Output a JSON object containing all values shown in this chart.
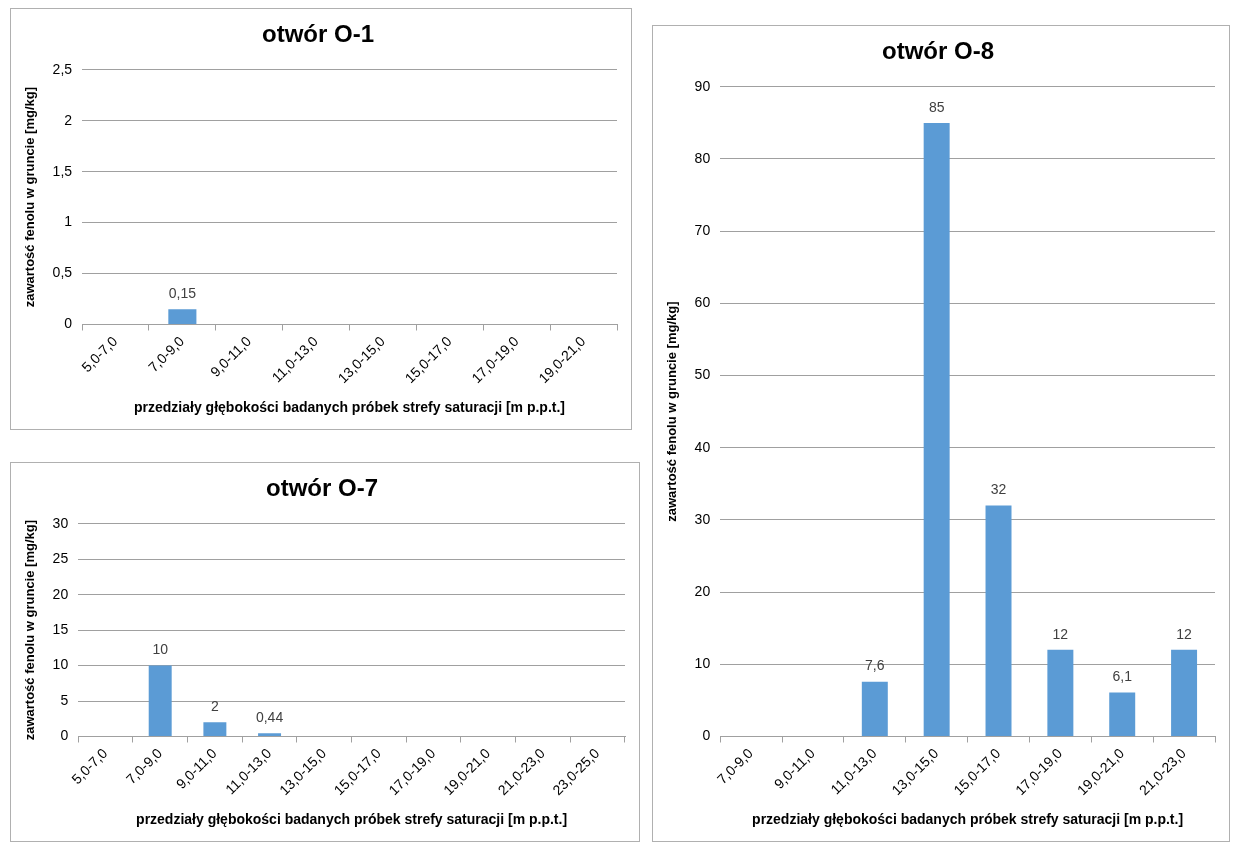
{
  "chart_data": [
    {
      "type": "bar",
      "title": "otwór O-1",
      "xlabel": "przedziały głębokości badanych próbek strefy saturacji [m p.p.t.]",
      "ylabel": "zawartość fenolu w gruncie [mg/kg]",
      "categories": [
        "5,0-7,0",
        "7,0-9,0",
        "9,0-11,0",
        "11,0-13,0",
        "13,0-15,0",
        "15,0-17,0",
        "17,0-19,0",
        "19,0-21,0"
      ],
      "values": [
        null,
        0.15,
        null,
        null,
        null,
        null,
        null,
        null
      ],
      "color": "#5b9bd5",
      "ylim": [
        0,
        2.5
      ],
      "yticks": [
        {
          "value": 0,
          "label": "0"
        },
        {
          "value": 0.5,
          "label": "0,5"
        },
        {
          "value": 1,
          "label": "1"
        },
        {
          "value": 1.5,
          "label": "1,5"
        },
        {
          "value": 2,
          "label": "2"
        },
        {
          "value": 2.5,
          "label": "2,5"
        }
      ],
      "value_labels": [
        null,
        "0,15",
        null,
        null,
        null,
        null,
        null,
        null
      ],
      "grid": "y",
      "legend": false
    },
    {
      "type": "bar",
      "title": "otwór O-8",
      "xlabel": "przedziały głębokości badanych próbek strefy saturacji [m p.p.t.]",
      "ylabel": "zawartość fenolu w gruncie [mg/kg]",
      "categories": [
        "7,0-9,0",
        "9,0-11,0",
        "11,0-13,0",
        "13,0-15,0",
        "15,0-17,0",
        "17,0-19,0",
        "19,0-21,0",
        "21,0-23,0"
      ],
      "values": [
        null,
        null,
        7.6,
        85,
        32,
        12,
        6.1,
        12
      ],
      "color": "#5b9bd5",
      "ylim": [
        0,
        90
      ],
      "yticks": [
        0,
        10,
        20,
        30,
        40,
        50,
        60,
        70,
        80,
        90
      ],
      "value_labels": [
        null,
        null,
        "7,6",
        "85",
        "32",
        "12",
        "6,1",
        "12"
      ],
      "grid": "y",
      "legend": false
    },
    {
      "type": "bar",
      "title": "otwór O-7",
      "xlabel": "przedziały głębokości badanych próbek strefy saturacji [m p.p.t.]",
      "ylabel": "zawartość fenolu w gruncie [mg/kg]",
      "categories": [
        "5,0-7,0",
        "7,0-9,0",
        "9,0-11,0",
        "11,0-13,0",
        "13,0-15,0",
        "15,0-17,0",
        "17,0-19,0",
        "19,0-21,0",
        "21,0-23,0",
        "23,0-25,0"
      ],
      "values": [
        null,
        10,
        2,
        0.44,
        null,
        null,
        null,
        null,
        null,
        null
      ],
      "color": "#5b9bd5",
      "ylim": [
        0,
        30
      ],
      "yticks": [
        0,
        5,
        10,
        15,
        20,
        25,
        30
      ],
      "value_labels": [
        null,
        "10",
        "2",
        "0,44",
        null,
        null,
        null,
        null,
        null,
        null
      ],
      "grid": "y",
      "legend": false
    }
  ]
}
